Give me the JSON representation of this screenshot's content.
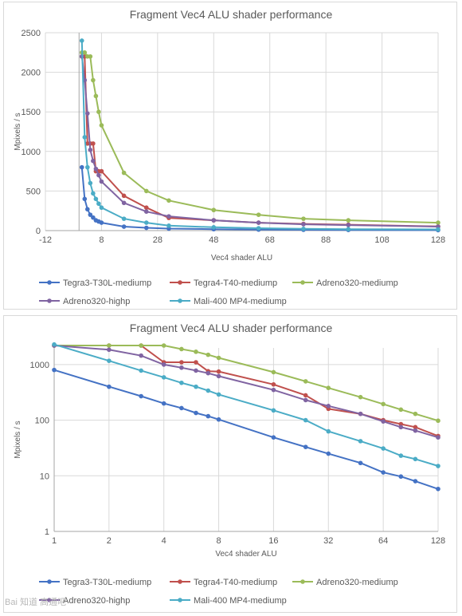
{
  "chart_data": [
    {
      "type": "scatter",
      "title": "Fragment Vec4 ALU shader performance",
      "xlabel": "Vec4 shader ALU",
      "ylabel": "Mpixels / s",
      "xlim": [
        -12,
        128
      ],
      "ylim": [
        0,
        2500
      ],
      "xticks": [
        -12,
        8,
        28,
        48,
        68,
        88,
        108,
        128
      ],
      "yticks": [
        0,
        500,
        1000,
        1500,
        2000,
        2500
      ],
      "grid": true,
      "legend": "bottom",
      "series": [
        {
          "name": "Tegra3-T30L-mediump",
          "color": "#4472c4",
          "x": [
            1,
            2,
            3,
            4,
            5,
            6,
            7,
            8,
            16,
            24,
            32,
            48,
            64,
            80,
            96,
            128
          ],
          "y": [
            800,
            400,
            270,
            200,
            165,
            130,
            115,
            100,
            50,
            35,
            25,
            18,
            13,
            10,
            8,
            6
          ]
        },
        {
          "name": "Tegra4-T40-mediump",
          "color": "#c0504d",
          "x": [
            1,
            2,
            3,
            4,
            5,
            6,
            7,
            8,
            16,
            24,
            32,
            48,
            64,
            80,
            96,
            128
          ],
          "y": [
            2200,
            2200,
            1100,
            1100,
            1100,
            750,
            750,
            750,
            440,
            290,
            160,
            130,
            100,
            85,
            75,
            52
          ]
        },
        {
          "name": "Adreno320-mediump",
          "color": "#9bbb59",
          "x": [
            1,
            2,
            3,
            4,
            5,
            6,
            7,
            8,
            16,
            24,
            32,
            48,
            64,
            80,
            96,
            128
          ],
          "y": [
            2250,
            2250,
            2200,
            2200,
            1900,
            1700,
            1500,
            1330,
            730,
            500,
            380,
            260,
            200,
            150,
            130,
            100
          ]
        },
        {
          "name": "Adreno320-highp",
          "color": "#8064a2",
          "x": [
            1,
            2,
            3,
            4,
            5,
            6,
            7,
            8,
            16,
            24,
            32,
            48,
            64,
            80,
            96,
            128
          ],
          "y": [
            2200,
            1900,
            1480,
            1020,
            880,
            780,
            700,
            620,
            350,
            240,
            180,
            130,
            100,
            80,
            70,
            50
          ]
        },
        {
          "name": "Mali-400 MP4-mediump",
          "color": "#4bacc6",
          "x": [
            1,
            2,
            3,
            4,
            5,
            6,
            7,
            8,
            16,
            24,
            32,
            48,
            64,
            80,
            96,
            128
          ],
          "y": [
            2400,
            1180,
            800,
            600,
            470,
            400,
            340,
            290,
            150,
            100,
            62,
            42,
            30,
            22,
            18,
            15
          ]
        }
      ]
    },
    {
      "type": "line",
      "title": "Fragment Vec4 ALU shader performance",
      "xlabel": "Vec4 shader ALU",
      "ylabel": "Mpixels / s",
      "xscale": "log2",
      "yscale": "log10",
      "xticks": [
        1,
        2,
        4,
        8,
        16,
        32,
        64,
        128
      ],
      "yticks": [
        1,
        10,
        100,
        1000
      ],
      "grid": true,
      "legend": "bottom",
      "series": [
        {
          "name": "Tegra3-T30L-mediump",
          "color": "#4472c4",
          "x": [
            1,
            2,
            3,
            4,
            5,
            6,
            7,
            8,
            16,
            24,
            32,
            48,
            64,
            80,
            96,
            128
          ],
          "y": [
            800,
            400,
            270,
            200,
            165,
            135,
            118,
            103,
            49,
            33,
            25,
            17,
            11.5,
            9.7,
            8,
            5.8
          ]
        },
        {
          "name": "Tegra4-T40-mediump",
          "color": "#c0504d",
          "x": [
            1,
            2,
            3,
            4,
            5,
            6,
            7,
            8,
            16,
            24,
            32,
            48,
            64,
            80,
            96,
            128
          ],
          "y": [
            2200,
            2200,
            2200,
            1100,
            1100,
            1100,
            760,
            750,
            440,
            280,
            160,
            130,
            100,
            85,
            75,
            52
          ]
        },
        {
          "name": "Adreno320-mediump",
          "color": "#9bbb59",
          "x": [
            1,
            2,
            3,
            4,
            5,
            6,
            7,
            8,
            16,
            24,
            32,
            48,
            64,
            80,
            96,
            128
          ],
          "y": [
            2200,
            2200,
            2200,
            2200,
            1900,
            1700,
            1500,
            1320,
            730,
            500,
            380,
            260,
            195,
            155,
            130,
            98
          ]
        },
        {
          "name": "Adreno320-highp",
          "color": "#8064a2",
          "x": [
            1,
            2,
            3,
            4,
            5,
            6,
            7,
            8,
            16,
            24,
            32,
            48,
            64,
            80,
            96,
            128
          ],
          "y": [
            2200,
            1850,
            1450,
            1000,
            880,
            780,
            700,
            620,
            350,
            230,
            180,
            130,
            95,
            75,
            65,
            49
          ]
        },
        {
          "name": "Mali-400 MP4-mediump",
          "color": "#4bacc6",
          "x": [
            1,
            2,
            3,
            4,
            5,
            6,
            7,
            8,
            16,
            24,
            32,
            48,
            64,
            80,
            96,
            128
          ],
          "y": [
            2300,
            1170,
            780,
            590,
            470,
            400,
            340,
            290,
            150,
            100,
            63,
            42,
            31,
            23,
            20,
            15
          ]
        }
      ]
    }
  ],
  "watermark": "Bai 知道 高通吧"
}
